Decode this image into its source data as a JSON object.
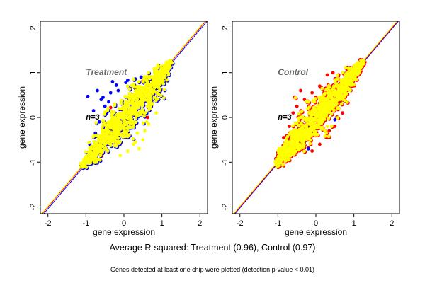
{
  "chart_data": [
    {
      "type": "scatter",
      "panel": "treatment",
      "annotation": "Treatment",
      "n_label": "n=3",
      "xlabel": "gene expression",
      "ylabel": "gene expression",
      "xlim": [
        -2.2,
        2.2
      ],
      "ylim": [
        -2.15,
        2.15
      ],
      "xticks": [
        "-2",
        "-1",
        "0",
        "1",
        "2"
      ],
      "yticks": [
        "-2",
        "-1",
        "0",
        "1",
        "2"
      ],
      "reference_lines": [
        {
          "color": "#ff0000",
          "slope": 1,
          "intercept": 0
        },
        {
          "color": "#ffff00",
          "slope": 1,
          "intercept": 0.02
        },
        {
          "color": "#0000ff",
          "slope": 1,
          "intercept": -0.04
        }
      ],
      "cloud": {
        "x_range": [
          -1.1,
          1.25
        ],
        "spread": 0.12,
        "count": 900
      },
      "series": [
        {
          "name": "blue",
          "color": "#0000ff",
          "points": [
            [
              -0.95,
              0.47
            ],
            [
              -0.7,
              0.6
            ],
            [
              -0.3,
              0.8
            ],
            [
              -0.2,
              0.72
            ],
            [
              0.05,
              0.78
            ],
            [
              0.1,
              0.83
            ],
            [
              0.3,
              0.86
            ],
            [
              -0.55,
              0.45
            ],
            [
              -0.8,
              0.15
            ],
            [
              -0.9,
              -0.6
            ],
            [
              -0.6,
              0.4
            ],
            [
              -0.35,
              0.55
            ],
            [
              -0.5,
              0.25
            ],
            [
              -0.45,
              0.1
            ],
            [
              -0.75,
              -0.35
            ],
            [
              0.15,
              0.65
            ],
            [
              -0.15,
              0.6
            ],
            [
              -0.4,
              0.35
            ],
            [
              -0.65,
              -0.1
            ],
            [
              0.45,
              0.9
            ]
          ]
        },
        {
          "name": "red",
          "color": "#ff0000",
          "points": [
            [
              0.62,
              0.0
            ],
            [
              -0.35,
              0.22
            ],
            [
              0.5,
              0.82
            ],
            [
              -0.9,
              -1.0
            ],
            [
              -0.6,
              -0.85
            ]
          ]
        },
        {
          "name": "yellow",
          "color": "#ffff00",
          "points": [
            [
              0.8,
              0.45
            ],
            [
              0.75,
              0.3
            ],
            [
              0.85,
              0.1
            ],
            [
              0.6,
              -0.1
            ],
            [
              0.55,
              -0.3
            ],
            [
              0.35,
              -0.35
            ],
            [
              0.25,
              -0.6
            ],
            [
              0.1,
              -0.75
            ],
            [
              0.4,
              -0.7
            ],
            [
              -0.1,
              -0.85
            ],
            [
              0.5,
              -0.5
            ],
            [
              0.7,
              0.2
            ],
            [
              0.65,
              -0.15
            ],
            [
              0.3,
              -0.55
            ]
          ]
        }
      ],
      "layer_order": [
        "blue",
        "red",
        "yellow"
      ]
    },
    {
      "type": "scatter",
      "panel": "control",
      "annotation": "Control",
      "n_label": "n=3",
      "xlabel": "gene expression",
      "ylabel": "gene expression",
      "xlim": [
        -2.2,
        2.2
      ],
      "ylim": [
        -2.15,
        2.15
      ],
      "xticks": [
        "-2",
        "-1",
        "0",
        "1",
        "2"
      ],
      "yticks": [
        "-2",
        "-1",
        "0",
        "1",
        "2"
      ],
      "reference_lines": [
        {
          "color": "#0000ff",
          "slope": 1,
          "intercept": -0.02
        },
        {
          "color": "#ff0000",
          "slope": 1,
          "intercept": 0
        },
        {
          "color": "#ffff00",
          "slope": 1,
          "intercept": 0.02
        }
      ],
      "cloud": {
        "x_range": [
          -1.05,
          1.25
        ],
        "spread": 0.1,
        "count": 900
      },
      "series": [
        {
          "name": "blue",
          "color": "#0000ff",
          "points": [
            [
              -0.95,
              -1.05
            ],
            [
              0.8,
              0.65
            ],
            [
              0.9,
              0.75
            ],
            [
              -0.2,
              -0.7
            ],
            [
              0.5,
              -0.05
            ]
          ]
        },
        {
          "name": "red",
          "color": "#ff0000",
          "points": [
            [
              -0.4,
              0.6
            ],
            [
              -0.1,
              0.55
            ],
            [
              0.1,
              0.7
            ],
            [
              0.3,
              0.95
            ],
            [
              0.45,
              1.0
            ],
            [
              0.6,
              0.95
            ],
            [
              -0.3,
              0.4
            ],
            [
              -0.6,
              0.1
            ],
            [
              -0.7,
              -0.2
            ],
            [
              -0.85,
              -0.45
            ],
            [
              0.7,
              0.1
            ],
            [
              0.5,
              -0.2
            ],
            [
              0.3,
              -0.45
            ],
            [
              0.1,
              -0.6
            ],
            [
              -0.1,
              -0.75
            ],
            [
              -0.2,
              -0.68
            ],
            [
              -0.5,
              0.25
            ],
            [
              0.0,
              0.45
            ],
            [
              0.2,
              0.5
            ],
            [
              0.4,
              0.15
            ],
            [
              0.6,
              0.4
            ],
            [
              0.8,
              0.9
            ],
            [
              -0.55,
              -0.6
            ],
            [
              0.35,
              -0.3
            ]
          ]
        },
        {
          "name": "yellow",
          "color": "#ffff00",
          "points": [
            [
              0.9,
              0.6
            ],
            [
              0.6,
              0.2
            ],
            [
              -0.6,
              -0.3
            ],
            [
              0.3,
              -0.2
            ]
          ]
        }
      ],
      "layer_order": [
        "red",
        "blue",
        "yellow"
      ]
    }
  ],
  "caption": "Average R-squared: Treatment (0.96), Control (0.97)",
  "footnote": "Genes detected at least one chip were plotted (detection p-value < 0.01)"
}
